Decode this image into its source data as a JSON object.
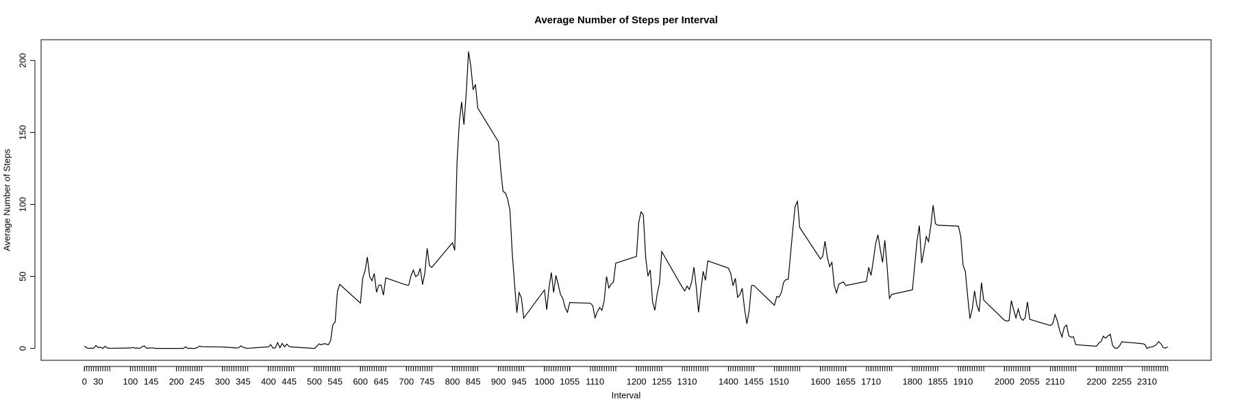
{
  "chart_data": {
    "type": "line",
    "title": "Average Number of Steps per Interval",
    "xlabel": "Interval",
    "ylabel": "Average Number of Steps",
    "x": [
      0,
      5,
      10,
      15,
      20,
      25,
      30,
      35,
      40,
      45,
      50,
      55,
      100,
      105,
      110,
      115,
      120,
      125,
      130,
      135,
      140,
      145,
      150,
      155,
      200,
      205,
      210,
      215,
      220,
      225,
      230,
      235,
      240,
      245,
      250,
      255,
      300,
      305,
      310,
      315,
      320,
      325,
      330,
      335,
      340,
      345,
      350,
      355,
      400,
      405,
      410,
      415,
      420,
      425,
      430,
      435,
      440,
      445,
      450,
      455,
      500,
      505,
      510,
      515,
      520,
      525,
      530,
      535,
      540,
      545,
      550,
      555,
      600,
      605,
      610,
      615,
      620,
      625,
      630,
      635,
      640,
      645,
      650,
      655,
      700,
      705,
      710,
      715,
      720,
      725,
      730,
      735,
      740,
      745,
      750,
      755,
      800,
      805,
      810,
      815,
      820,
      825,
      830,
      835,
      840,
      845,
      850,
      855,
      900,
      905,
      910,
      915,
      920,
      925,
      930,
      935,
      940,
      945,
      950,
      955,
      1000,
      1005,
      1010,
      1015,
      1020,
      1025,
      1030,
      1035,
      1040,
      1045,
      1050,
      1055,
      1100,
      1105,
      1110,
      1115,
      1120,
      1125,
      1130,
      1135,
      1140,
      1145,
      1150,
      1155,
      1200,
      1205,
      1210,
      1215,
      1220,
      1225,
      1230,
      1235,
      1240,
      1245,
      1250,
      1255,
      1300,
      1305,
      1310,
      1315,
      1320,
      1325,
      1330,
      1335,
      1340,
      1345,
      1350,
      1355,
      1400,
      1405,
      1410,
      1415,
      1420,
      1425,
      1430,
      1435,
      1440,
      1445,
      1450,
      1455,
      1500,
      1505,
      1510,
      1515,
      1520,
      1525,
      1530,
      1535,
      1540,
      1545,
      1550,
      1555,
      1600,
      1605,
      1610,
      1615,
      1620,
      1625,
      1630,
      1635,
      1640,
      1645,
      1650,
      1655,
      1700,
      1705,
      1710,
      1715,
      1720,
      1725,
      1730,
      1735,
      1740,
      1745,
      1750,
      1755,
      1800,
      1805,
      1810,
      1815,
      1820,
      1825,
      1830,
      1835,
      1840,
      1845,
      1850,
      1855,
      1900,
      1905,
      1910,
      1915,
      1920,
      1925,
      1930,
      1935,
      1940,
      1945,
      1950,
      1955,
      2000,
      2005,
      2010,
      2015,
      2020,
      2025,
      2030,
      2035,
      2040,
      2045,
      2050,
      2055,
      2100,
      2105,
      2110,
      2115,
      2120,
      2125,
      2130,
      2135,
      2140,
      2145,
      2150,
      2155,
      2200,
      2205,
      2210,
      2215,
      2220,
      2225,
      2230,
      2235,
      2240,
      2245,
      2250,
      2255,
      2300,
      2305,
      2310,
      2315,
      2320,
      2325,
      2330,
      2335,
      2340,
      2345,
      2350,
      2355
    ],
    "values": [
      1.7,
      0.3,
      0.1,
      0.2,
      0.1,
      2.1,
      0.5,
      0.9,
      0,
      1.5,
      0.3,
      0.1,
      0.3,
      0.7,
      0.2,
      0.3,
      0,
      1.1,
      1.8,
      0.2,
      0.2,
      0.4,
      0.3,
      0,
      0,
      0,
      0,
      0,
      1.1,
      0,
      0.2,
      0,
      0,
      0.5,
      1.6,
      1.2,
      1.0,
      0.9,
      0.8,
      0.7,
      0.6,
      0.5,
      0.3,
      0.4,
      1.8,
      0.8,
      0.3,
      0.1,
      1.1,
      2.6,
      0.2,
      0.4,
      4.0,
      0.5,
      3.5,
      1.1,
      3.0,
      1.3,
      1.1,
      0.9,
      0,
      1.4,
      3.2,
      2.5,
      3.3,
      3.1,
      2.5,
      5.2,
      16.5,
      18.3,
      39.5,
      44.5,
      31.5,
      49.0,
      53.8,
      63.5,
      50.0,
      47.0,
      52.0,
      39.0,
      44.0,
      44.0,
      37.0,
      49.0,
      44.0,
      44.0,
      50.5,
      54.5,
      49.9,
      51.0,
      55.7,
      44.3,
      52.3,
      69.5,
      57.8,
      56.2,
      73.4,
      68.2,
      129.4,
      157.5,
      171.2,
      155.4,
      177.3,
      206.2,
      195.9,
      179.6,
      183.4,
      167.0,
      143.5,
      124.0,
      109.1,
      108.1,
      103.7,
      96.0,
      66.2,
      45.2,
      24.8,
      38.8,
      35.0,
      21.1,
      40.6,
      27.0,
      42.4,
      52.7,
      38.9,
      50.8,
      44.3,
      37.4,
      34.7,
      28.3,
      25.1,
      31.9,
      31.4,
      29.7,
      21.3,
      25.5,
      28.4,
      26.5,
      33.4,
      50.0,
      42.0,
      44.6,
      46.0,
      59.2,
      63.9,
      87.6,
      94.8,
      92.8,
      63.4,
      50.2,
      54.5,
      32.4,
      26.5,
      37.7,
      45.1,
      67.3,
      42.3,
      39.9,
      43.3,
      41.0,
      46.2,
      56.4,
      42.8,
      25.1,
      40.0,
      53.5,
      47.3,
      60.8,
      55.8,
      52.0,
      43.6,
      48.7,
      35.5,
      37.5,
      41.8,
      27.5,
      17.1,
      26.1,
      43.6,
      43.8,
      30.0,
      36.1,
      35.5,
      38.8,
      46.0,
      47.8,
      48.1,
      65.3,
      82.9,
      98.7,
      102.1,
      84.0,
      62.1,
      64.1,
      74.5,
      63.2,
      56.9,
      59.8,
      43.9,
      38.6,
      44.7,
      45.5,
      46.2,
      43.7,
      46.6,
      56.3,
      50.7,
      61.2,
      72.7,
      78.9,
      68.9,
      59.7,
      75.1,
      56.5,
      34.8,
      37.5,
      40.7,
      58.0,
      74.7,
      85.3,
      59.3,
      67.8,
      77.7,
      74.2,
      85.3,
      99.5,
      86.6,
      85.6,
      84.9,
      77.8,
      58.0,
      53.4,
      36.3,
      20.7,
      27.4,
      40.0,
      30.2,
      25.5,
      45.7,
      33.5,
      19.6,
      19.0,
      19.3,
      33.3,
      26.8,
      21.2,
      27.3,
      21.3,
      19.5,
      21.3,
      32.3,
      20.2,
      15.9,
      17.2,
      23.5,
      19.2,
      12.5,
      8.0,
      14.7,
      16.3,
      8.7,
      7.8,
      8.1,
      2.6,
      1.5,
      3.7,
      4.8,
      8.5,
      7.1,
      8.7,
      9.8,
      2.2,
      0.3,
      0.1,
      1.6,
      4.6,
      3.3,
      2.8,
      0,
      0.8,
      1.0,
      1.6,
      2.6,
      4.7,
      3.3,
      0.6,
      0.2,
      1.1
    ],
    "color": "#000000",
    "xlim": [
      -94.2,
      2449.2
    ],
    "ylim": [
      -8.25,
      214.42
    ],
    "xticks": [
      0,
      30,
      100,
      145,
      200,
      245,
      300,
      345,
      400,
      445,
      500,
      545,
      600,
      645,
      700,
      745,
      800,
      845,
      900,
      945,
      1000,
      1055,
      1110,
      1200,
      1255,
      1310,
      1400,
      1455,
      1510,
      1600,
      1655,
      1710,
      1800,
      1855,
      1910,
      2000,
      2055,
      2110,
      2200,
      2255,
      2310
    ],
    "yticks": [
      0,
      50,
      100,
      150,
      200
    ],
    "grid": false
  }
}
